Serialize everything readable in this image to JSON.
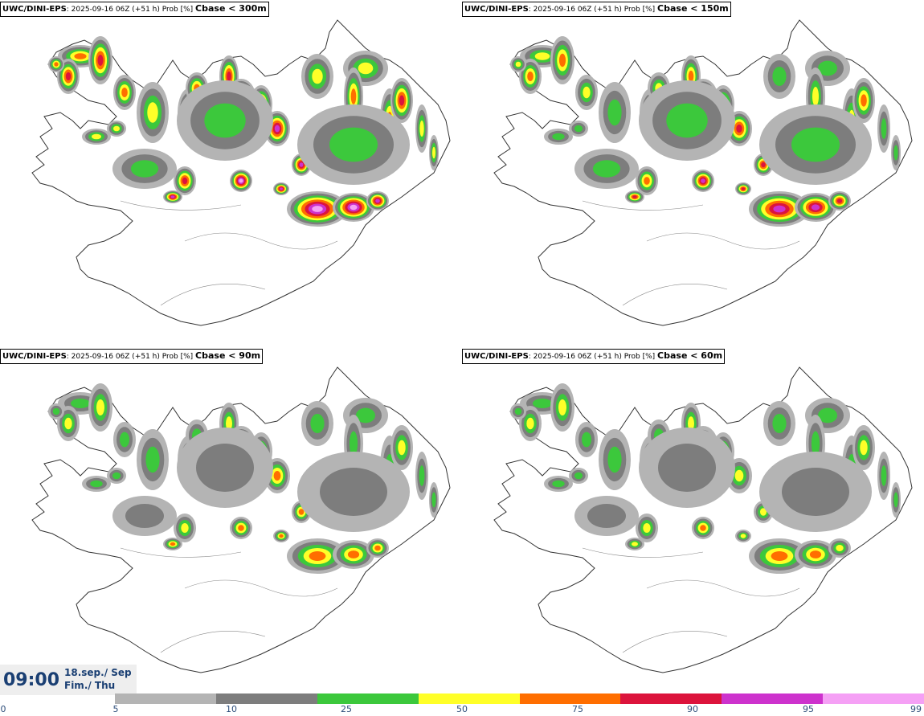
{
  "panels": [
    {
      "model": "UWC/DINI-EPS",
      "info": ": 2025-09-16 06Z (+51 h) Prob [%] ",
      "threshold": "Cbase < 300m",
      "intensity": 1.0
    },
    {
      "model": "UWC/DINI-EPS",
      "info": ": 2025-09-16 06Z (+51 h) Prob [%] ",
      "threshold": "Cbase < 150m",
      "intensity": 0.8
    },
    {
      "model": "UWC/DINI-EPS",
      "info": ": 2025-09-16 06Z (+51 h) Prob [%] ",
      "threshold": "Cbase < 90m",
      "intensity": 0.62
    },
    {
      "model": "UWC/DINI-EPS",
      "info": ": 2025-09-16 06Z (+51 h) Prob [%] ",
      "threshold": "Cbase < 60m",
      "intensity": 0.55
    }
  ],
  "time": {
    "clock": "09:00",
    "date": "18.sep./ Sep",
    "day": "Fim./ Thu"
  },
  "legend": {
    "ticks": [
      "0",
      "5",
      "10",
      "25",
      "50",
      "75",
      "90",
      "95",
      "99"
    ],
    "colors": [
      "#b4b4b4",
      "#7d7d7d",
      "#3cc83c",
      "#ffff28",
      "#ff6e00",
      "#dc143c",
      "#cd32cd",
      "#f5a0f5"
    ]
  }
}
